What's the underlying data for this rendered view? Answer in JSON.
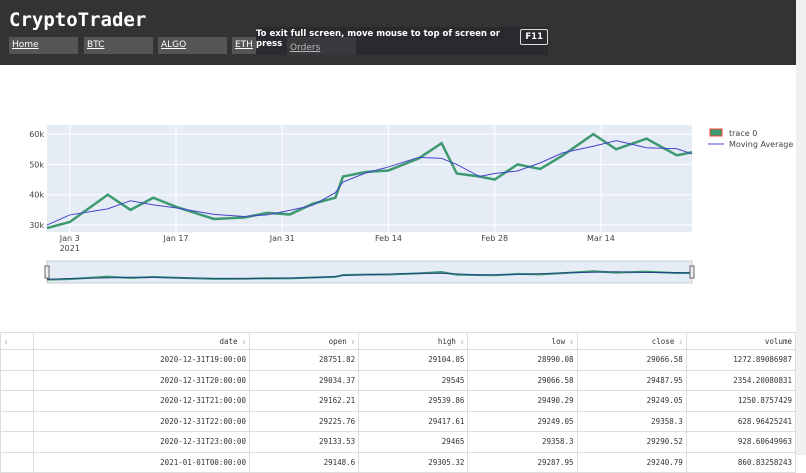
{
  "app": {
    "title": "CryptoTrader"
  },
  "nav": [
    {
      "label": "Home"
    },
    {
      "label": "BTC"
    },
    {
      "label": "ALGO"
    },
    {
      "label": "ETH"
    },
    {
      "label": "Orders"
    }
  ],
  "fullscreen_notice": {
    "text": "To exit full screen, move mouse to top of screen or press",
    "key": "F11"
  },
  "chart_data": {
    "type": "line",
    "x_ticks": [
      "Jan 3",
      "Jan 17",
      "Jan 31",
      "Feb 14",
      "Feb 28",
      "Mar 14"
    ],
    "x_tick_year": "2021",
    "y_ticks": [
      "30k",
      "40k",
      "50k",
      "60k"
    ],
    "xlim": [
      "2020-12-31",
      "2021-03-26"
    ],
    "ylim": [
      27700,
      63000
    ],
    "grid": true,
    "legend_placement": "top-right",
    "legend": [
      "trace 0",
      "Moving Average"
    ],
    "colors": {
      "increasing": "#3d9970",
      "decreasing": "#ff4136",
      "moving_average": "#4444cc",
      "plot_bg": "#e5ecf6"
    },
    "series": [
      {
        "name": "trace 0",
        "x": [
          "2020-12-31",
          "2021-01-03",
          "2021-01-08",
          "2021-01-11",
          "2021-01-14",
          "2021-01-17",
          "2021-01-22",
          "2021-01-26",
          "2021-01-29",
          "2021-02-01",
          "2021-02-04",
          "2021-02-07",
          "2021-02-08",
          "2021-02-11",
          "2021-02-14",
          "2021-02-18",
          "2021-02-21",
          "2021-02-23",
          "2021-02-26",
          "2021-02-28",
          "2021-03-03",
          "2021-03-06",
          "2021-03-09",
          "2021-03-13",
          "2021-03-16",
          "2021-03-20",
          "2021-03-24",
          "2021-03-26"
        ],
        "y": [
          29000,
          31000,
          40000,
          35000,
          39000,
          36000,
          32000,
          32500,
          34000,
          33500,
          37000,
          39000,
          46000,
          47500,
          48000,
          52000,
          57000,
          47000,
          46000,
          45000,
          50000,
          48500,
          53000,
          60000,
          55000,
          58500,
          53000,
          54000
        ]
      }
    ]
  },
  "table": {
    "columns": [
      "",
      "date",
      "open",
      "high",
      "low",
      "close",
      "volume"
    ],
    "rows": [
      [
        "",
        "2020-12-31T19:00:00",
        "28751.82",
        "29104.05",
        "28990.08",
        "29066.58",
        "1272.89086987"
      ],
      [
        "",
        "2020-12-31T20:00:00",
        "29034.37",
        "29545",
        "29066.58",
        "29487.95",
        "2354.20080831"
      ],
      [
        "",
        "2020-12-31T21:00:00",
        "29162.21",
        "29539.86",
        "29490.29",
        "29249.05",
        "1250.8757429"
      ],
      [
        "",
        "2020-12-31T22:00:00",
        "29225.76",
        "29417.61",
        "29249.05",
        "29358.3",
        "628.96425241"
      ],
      [
        "",
        "2020-12-31T23:00:00",
        "29133.53",
        "29465",
        "29358.3",
        "29290.52",
        "928.60649963"
      ],
      [
        "",
        "2021-01-01T00:00:00",
        "29148.6",
        "29305.32",
        "29287.95",
        "29240.79",
        "860.83258243"
      ]
    ]
  }
}
